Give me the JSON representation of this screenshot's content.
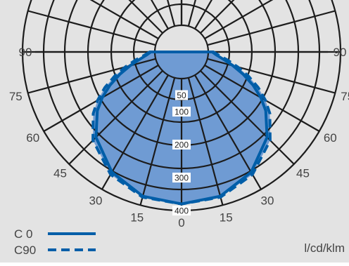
{
  "chart_data": {
    "type": "polar",
    "unit": "l/cd/klm",
    "angle_labels": {
      "left": [
        "90",
        "75",
        "60",
        "45",
        "30",
        "15"
      ],
      "center": "0",
      "right": [
        "15",
        "30",
        "45",
        "60",
        "75",
        "90"
      ]
    },
    "radial_ticks": [
      "50",
      "100",
      "200",
      "300",
      "400"
    ],
    "radial_values": [
      50,
      100,
      200,
      300,
      400
    ],
    "angle_step_deg": 15,
    "series": [
      {
        "name": "C 0",
        "style": "solid",
        "angles": [
          0,
          15,
          30,
          45,
          55,
          60,
          65,
          70,
          75,
          80,
          85,
          90
        ],
        "values": [
          380,
          372,
          340,
          285,
          230,
          196,
          158,
          118,
          80,
          48,
          25,
          12
        ]
      },
      {
        "name": "C90",
        "style": "dashed",
        "angles": [
          0,
          15,
          30,
          45,
          55,
          60,
          65,
          70,
          75,
          80,
          85,
          90
        ],
        "values": [
          380,
          375,
          348,
          298,
          245,
          212,
          175,
          135,
          95,
          60,
          32,
          15
        ]
      }
    ]
  },
  "colors": {
    "background": "#e3e3e3",
    "grid": "#1c1c1c",
    "fill": "#6f9bd3",
    "line": "#005ea8",
    "text": "#444444"
  }
}
